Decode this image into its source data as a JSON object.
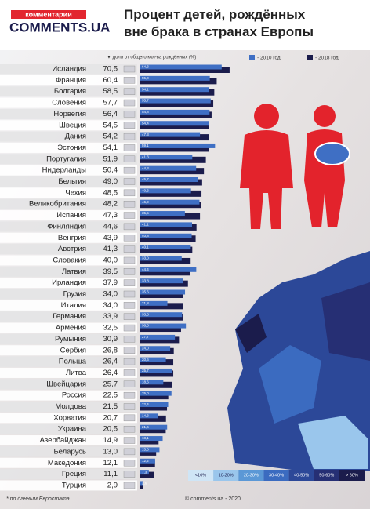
{
  "chart_data": {
    "type": "paired-bar",
    "logo": {
      "top": "комментарии",
      "main": "COMMENTS.UA"
    },
    "title": "Процент детей, рождённых вне брака в странах Европы",
    "axis_note": "▼ доля от общего кол-ва рождённых (%)",
    "categories": [
      "Исландия",
      "Франция",
      "Болгария",
      "Словения",
      "Норвегия",
      "Швеция",
      "Дания",
      "Эстония",
      "Португалия",
      "Нидерланды",
      "Бельгия",
      "Чехия",
      "Великобритания",
      "Испания",
      "Финляндия",
      "Венгрия",
      "Австрия",
      "Словакия",
      "Латвия",
      "Ирландия",
      "Грузия",
      "Италия",
      "Германия",
      "Армения",
      "Румыния",
      "Сербия",
      "Польша",
      "Литва",
      "Швейцария",
      "Россия",
      "Молдова",
      "Хорватия",
      "Украина",
      "Азербайджан",
      "Беларусь",
      "Македония",
      "Греция",
      "Турция"
    ],
    "series": [
      {
        "name": "- 2018 год",
        "color": "#1b1c4c",
        "values": [
          70.5,
          60.4,
          58.5,
          57.7,
          56.4,
          54.5,
          54.2,
          54.1,
          51.9,
          50.4,
          49.0,
          48.5,
          48.2,
          47.3,
          44.6,
          43.9,
          41.3,
          40.0,
          39.5,
          37.9,
          34.0,
          34.0,
          33.9,
          32.5,
          30.9,
          26.8,
          26.4,
          26.4,
          25.7,
          22.5,
          21.5,
          20.7,
          20.5,
          14.9,
          13.0,
          12.1,
          11.1,
          2.9
        ],
        "value_labels": [
          "70,5",
          "60,4",
          "58,5",
          "57,7",
          "56,4",
          "54,5",
          "54,2",
          "54,1",
          "51,9",
          "50,4",
          "49,0",
          "48,5",
          "48,2",
          "47,3",
          "44,6",
          "43,9",
          "41,3",
          "40,0",
          "39,5",
          "37,9",
          "34,0",
          "34,0",
          "33,9",
          "32,5",
          "30,9",
          "26,8",
          "26,4",
          "26,4",
          "25,7",
          "22,5",
          "21,5",
          "20,7",
          "20,5",
          "14,9",
          "13,0",
          "12,1",
          "11,1",
          "2,9"
        ]
      },
      {
        "name": "- 2010 год",
        "color": "#3f6fc4",
        "values": [
          64.3,
          55.0,
          54.1,
          55.7,
          54.8,
          54.4,
          47.3,
          59.1,
          41.3,
          44.3,
          45.7,
          40.3,
          46.9,
          35.5,
          41.1,
          40.8,
          40.1,
          33.0,
          44.4,
          33.8,
          35.6,
          21.8,
          33.3,
          36.3,
          27.7,
          24.0,
          20.6,
          25.7,
          18.6,
          25.0,
          22.4,
          14.3,
          21.6,
          18.1,
          15.6,
          12.2,
          7.3,
          2.6
        ],
        "value_labels": [
          "64,3",
          "55,0",
          "54,1",
          "55,7",
          "54,8",
          "54,4",
          "47,3",
          "59,1",
          "41,3",
          "44,3",
          "45,7",
          "40,3",
          "46,9",
          "35,5",
          "41,1",
          "40,8",
          "40,1",
          "33,0",
          "44,4",
          "33,8",
          "35,6",
          "21,8",
          "33,3",
          "36,3",
          "27,7",
          "24,0",
          "20,6",
          "25,7",
          "18,6",
          "25,0",
          "22,4",
          "14,3",
          "21,6",
          "18,1",
          "15,6",
          "12,2",
          "7,3",
          "2,6"
        ]
      }
    ],
    "map_legend": [
      {
        "label": "<10%",
        "color": "#cfe5f6"
      },
      {
        "label": "10-20%",
        "color": "#9ac6ec"
      },
      {
        "label": "20-30%",
        "color": "#5b98d6"
      },
      {
        "label": "30-40%",
        "color": "#3b6bc0"
      },
      {
        "label": "40-50%",
        "color": "#2c4898"
      },
      {
        "label": "50-60%",
        "color": "#262f74"
      },
      {
        "label": "> 60%",
        "color": "#1b1c4c"
      }
    ],
    "footnote": "* по данным Евростата",
    "copyright": "© comments.ua - 2020"
  }
}
